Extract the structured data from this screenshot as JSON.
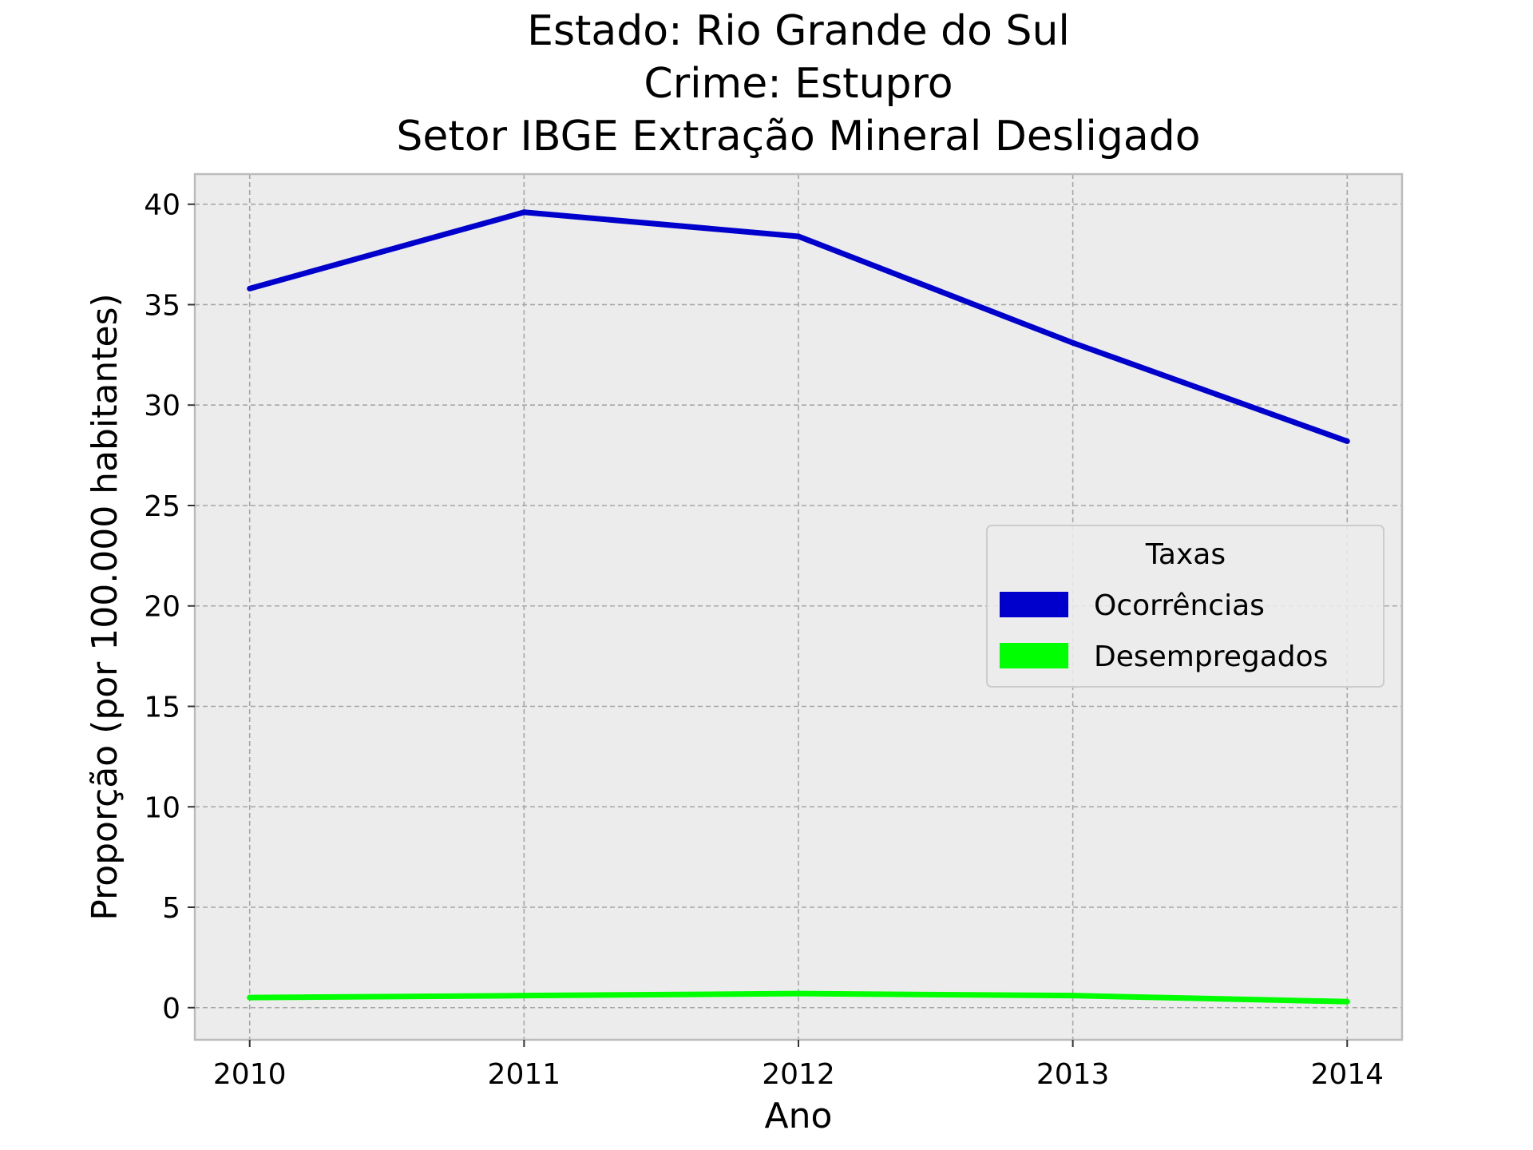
{
  "chart_data": {
    "type": "line",
    "title_lines": [
      "Estado: Rio Grande do Sul",
      "Crime: Estupro",
      "Setor IBGE  Extração Mineral   Desligado"
    ],
    "xlabel": "Ano",
    "ylabel": "Proporção (por 100.000 habitantes)",
    "x": [
      2010,
      2011,
      2012,
      2013,
      2014
    ],
    "x_ticks": [
      "2010",
      "2011",
      "2012",
      "2013",
      "2014"
    ],
    "xlim": [
      2009.8,
      2014.2
    ],
    "ylim": [
      -1.6,
      41.5
    ],
    "y_ticks": [
      "0",
      "5",
      "10",
      "15",
      "20",
      "25",
      "30",
      "35",
      "40"
    ],
    "grid": true,
    "legend": {
      "title": "Taxas",
      "placement": "center-right"
    },
    "series": [
      {
        "name": "Ocorrências",
        "color": "#0000cc",
        "values": [
          35.8,
          39.6,
          38.4,
          33.1,
          28.2
        ]
      },
      {
        "name": "Desempregados",
        "color": "#00ff00",
        "values": [
          0.5,
          0.6,
          0.7,
          0.6,
          0.3
        ]
      }
    ],
    "colors": {
      "plot_background": "#ececec",
      "grid": "#a6a6a6",
      "frame": "#bcbcbc"
    }
  }
}
